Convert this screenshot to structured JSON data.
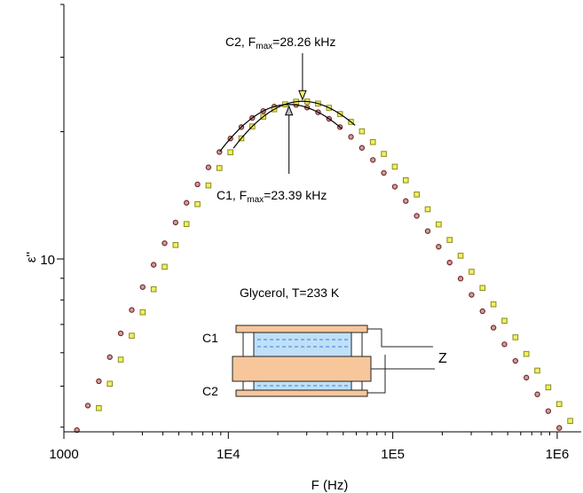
{
  "chart_data": {
    "type": "scatter",
    "title": "",
    "xlabel": "F (Hz)",
    "ylabel": "ε''",
    "x_scale": "log",
    "y_scale": "log",
    "xlim": [
      1000,
      1400000
    ],
    "ylim": [
      3.9,
      40
    ],
    "grid": false,
    "x_ticks": [
      {
        "value": 1000,
        "label": "1000"
      },
      {
        "value": 10000,
        "label": "1E4"
      },
      {
        "value": 100000,
        "label": "1E5"
      },
      {
        "value": 1000000,
        "label": "1E6"
      }
    ],
    "y_ticks": [
      {
        "value": 10,
        "label": "10"
      }
    ],
    "series": [
      {
        "marker": "circle",
        "color": "#c8a0a0",
        "edge_color": "#7a2a2a",
        "peak_frequency": 23390,
        "peak_value": 23.2,
        "low_slope": 0.9,
        "high_slope": 0.6,
        "f_start": 1200,
        "f_end": 1300000,
        "points_per_decade": 15
      },
      {
        "marker": "square",
        "color": "#f0f060",
        "edge_color": "#8a8a20",
        "peak_frequency": 28260,
        "peak_value": 23.6,
        "low_slope": 0.9,
        "high_slope": 0.6,
        "f_start": 1200,
        "f_end": 1300000,
        "points_per_decade": 15
      }
    ],
    "annotations": [
      {
        "name": "c2-peak",
        "prefix": "C2, F",
        "sub": "max",
        "suffix": "=28.26 kHz",
        "x": 28260,
        "y": 23.6
      },
      {
        "name": "c1-peak",
        "prefix": "C1, F",
        "sub": "max",
        "suffix": "=23.39 kHz",
        "x": 23390,
        "y": 23.2
      }
    ],
    "inset": {
      "title": "Glycerol, T=233 K",
      "labels": {
        "c1": "C1",
        "c2": "C2",
        "z": "Z"
      },
      "colors": {
        "plate": "#f7c79b",
        "liquid": "#bfe0f7",
        "dash": "#3a7ad8"
      }
    }
  }
}
